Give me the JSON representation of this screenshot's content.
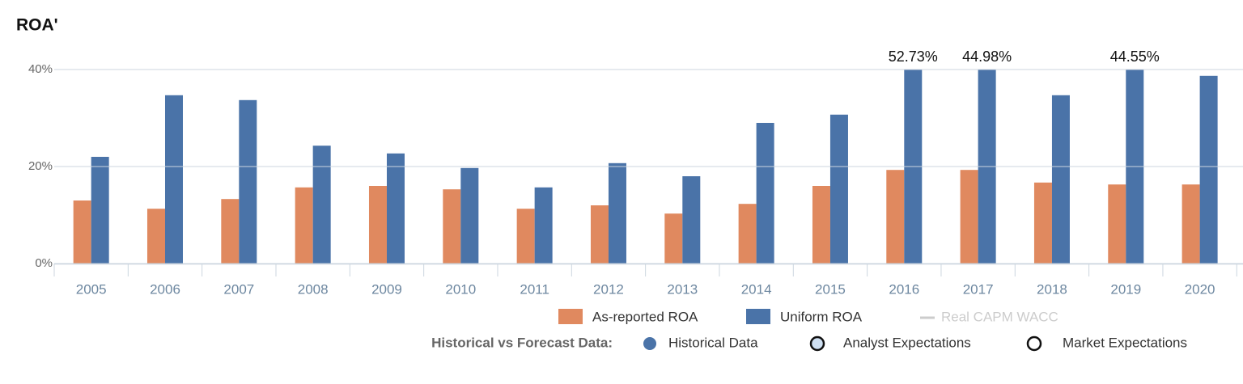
{
  "chart_data": {
    "type": "bar",
    "title": "ROA'",
    "categories": [
      "2005",
      "2006",
      "2007",
      "2008",
      "2009",
      "2010",
      "2011",
      "2012",
      "2013",
      "2014",
      "2015",
      "2016",
      "2017",
      "2018",
      "2019",
      "2020"
    ],
    "series": [
      {
        "name": "As-reported ROA",
        "color": "#e0895f",
        "values": [
          13.0,
          11.3,
          13.3,
          15.7,
          16.0,
          15.3,
          11.3,
          12.0,
          10.3,
          12.3,
          16.0,
          19.3,
          19.3,
          16.7,
          16.3,
          16.3
        ]
      },
      {
        "name": "Uniform ROA",
        "color": "#4a73a8",
        "values": [
          22.0,
          34.7,
          33.7,
          24.3,
          22.7,
          19.7,
          15.7,
          20.7,
          18.0,
          29.0,
          30.7,
          52.73,
          44.98,
          34.7,
          44.55,
          38.7
        ],
        "value_labels": [
          null,
          null,
          null,
          null,
          null,
          null,
          null,
          null,
          null,
          null,
          null,
          "52.73%",
          "44.98%",
          null,
          "44.55%",
          null
        ]
      }
    ],
    "hidden_series": [
      {
        "name": "Real CAPM WACC",
        "color": "#cccccc"
      }
    ],
    "ylim": [
      0,
      40
    ],
    "yticks": [
      {
        "value": 0,
        "label": "0%"
      },
      {
        "value": 20,
        "label": "20%"
      },
      {
        "value": 40,
        "label": "40%"
      }
    ],
    "grid": true,
    "data_legend": {
      "label": "Historical vs Forecast Data:",
      "items": [
        "Historical Data",
        "Analyst Expectations",
        "Market Expectations"
      ]
    }
  }
}
